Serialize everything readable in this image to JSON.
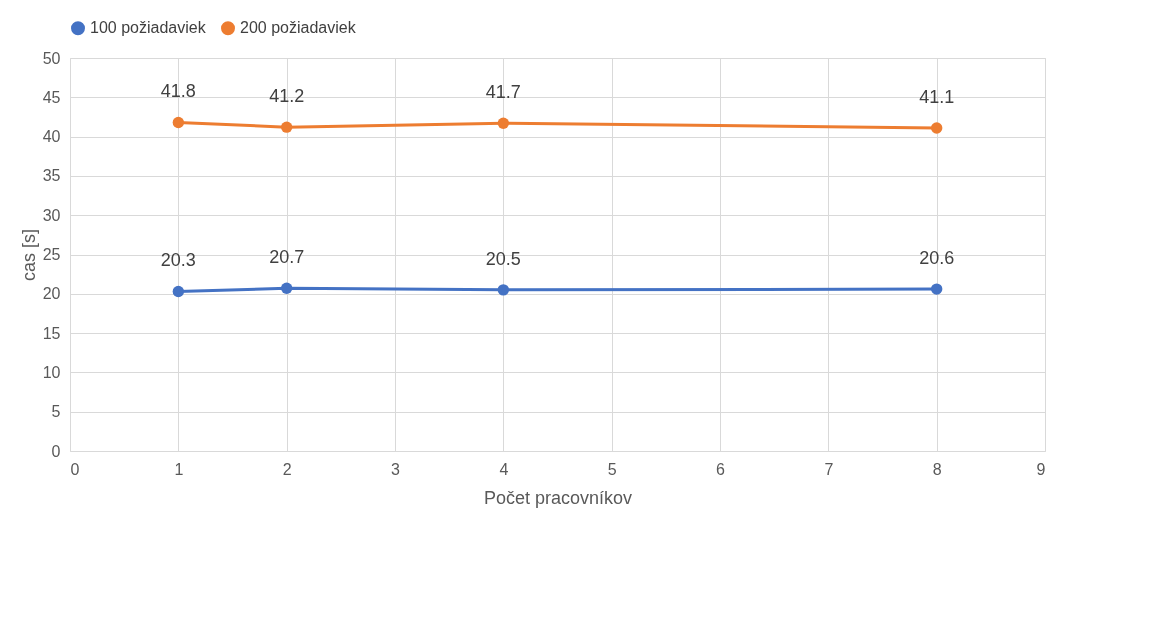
{
  "chart_data": {
    "type": "line",
    "xlabel": "Počet pracovníkov",
    "ylabel": "cas [s]",
    "x": [
      1,
      2,
      4,
      8
    ],
    "series": [
      {
        "name": "100 požiadaviek",
        "color": "#4472c4",
        "values": [
          20.3,
          20.7,
          20.5,
          20.6
        ]
      },
      {
        "name": "200 požiadaviek",
        "color": "#ed7d31",
        "values": [
          41.8,
          41.2,
          41.7,
          41.1
        ]
      }
    ],
    "xlim": [
      0,
      9
    ],
    "xticks": [
      0,
      1,
      2,
      3,
      4,
      5,
      6,
      7,
      8,
      9
    ],
    "ylim": [
      0,
      50
    ],
    "yticks": [
      0,
      5,
      10,
      15,
      20,
      25,
      30,
      35,
      40,
      45,
      50
    ],
    "grid": true,
    "legend": "top",
    "marker": "circle",
    "line_style": "solid",
    "data_labels": true
  }
}
